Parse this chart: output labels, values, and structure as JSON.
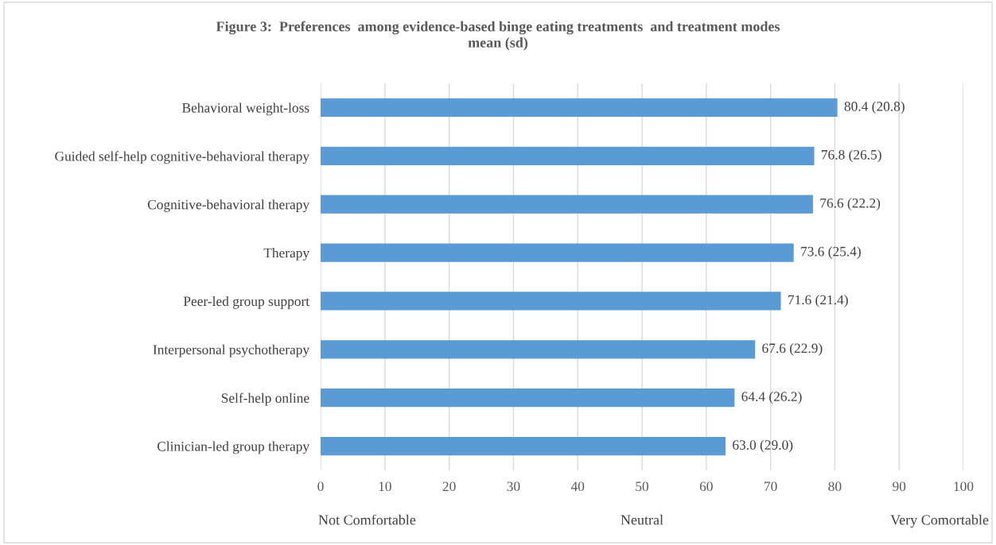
{
  "chart_data": {
    "type": "bar",
    "orientation": "horizontal",
    "title": "Figure 3:  Preferences  among evidence-based binge eating treatments  and treatment modes\nmean (sd)",
    "categories": [
      "Behavioral weight-loss",
      "Guided self-help cognitive-behavioral therapy",
      "Cognitive-behavioral therapy",
      "Therapy",
      "Peer-led group support",
      "Interpersonal psychotherapy",
      "Self-help online",
      "Clinician-led group therapy"
    ],
    "values": [
      80.4,
      76.8,
      76.6,
      73.6,
      71.6,
      67.6,
      64.4,
      63.0
    ],
    "value_labels": [
      "80.4 (20.8)",
      "76.8 (26.5)",
      "76.6 (22.2)",
      "73.6 (25.4)",
      "71.6 (21.4)",
      "67.6 (22.9)",
      "64.4 (26.2)",
      "63.0 (29.0)"
    ],
    "color": "#5b9bd5",
    "xlim": [
      0,
      100
    ],
    "xticks": [
      0,
      10,
      20,
      30,
      40,
      50,
      60,
      70,
      80,
      90,
      100
    ],
    "grid": "x",
    "annotations": [
      "Not Comfortable",
      "Neutral",
      "Very Comortable"
    ]
  }
}
